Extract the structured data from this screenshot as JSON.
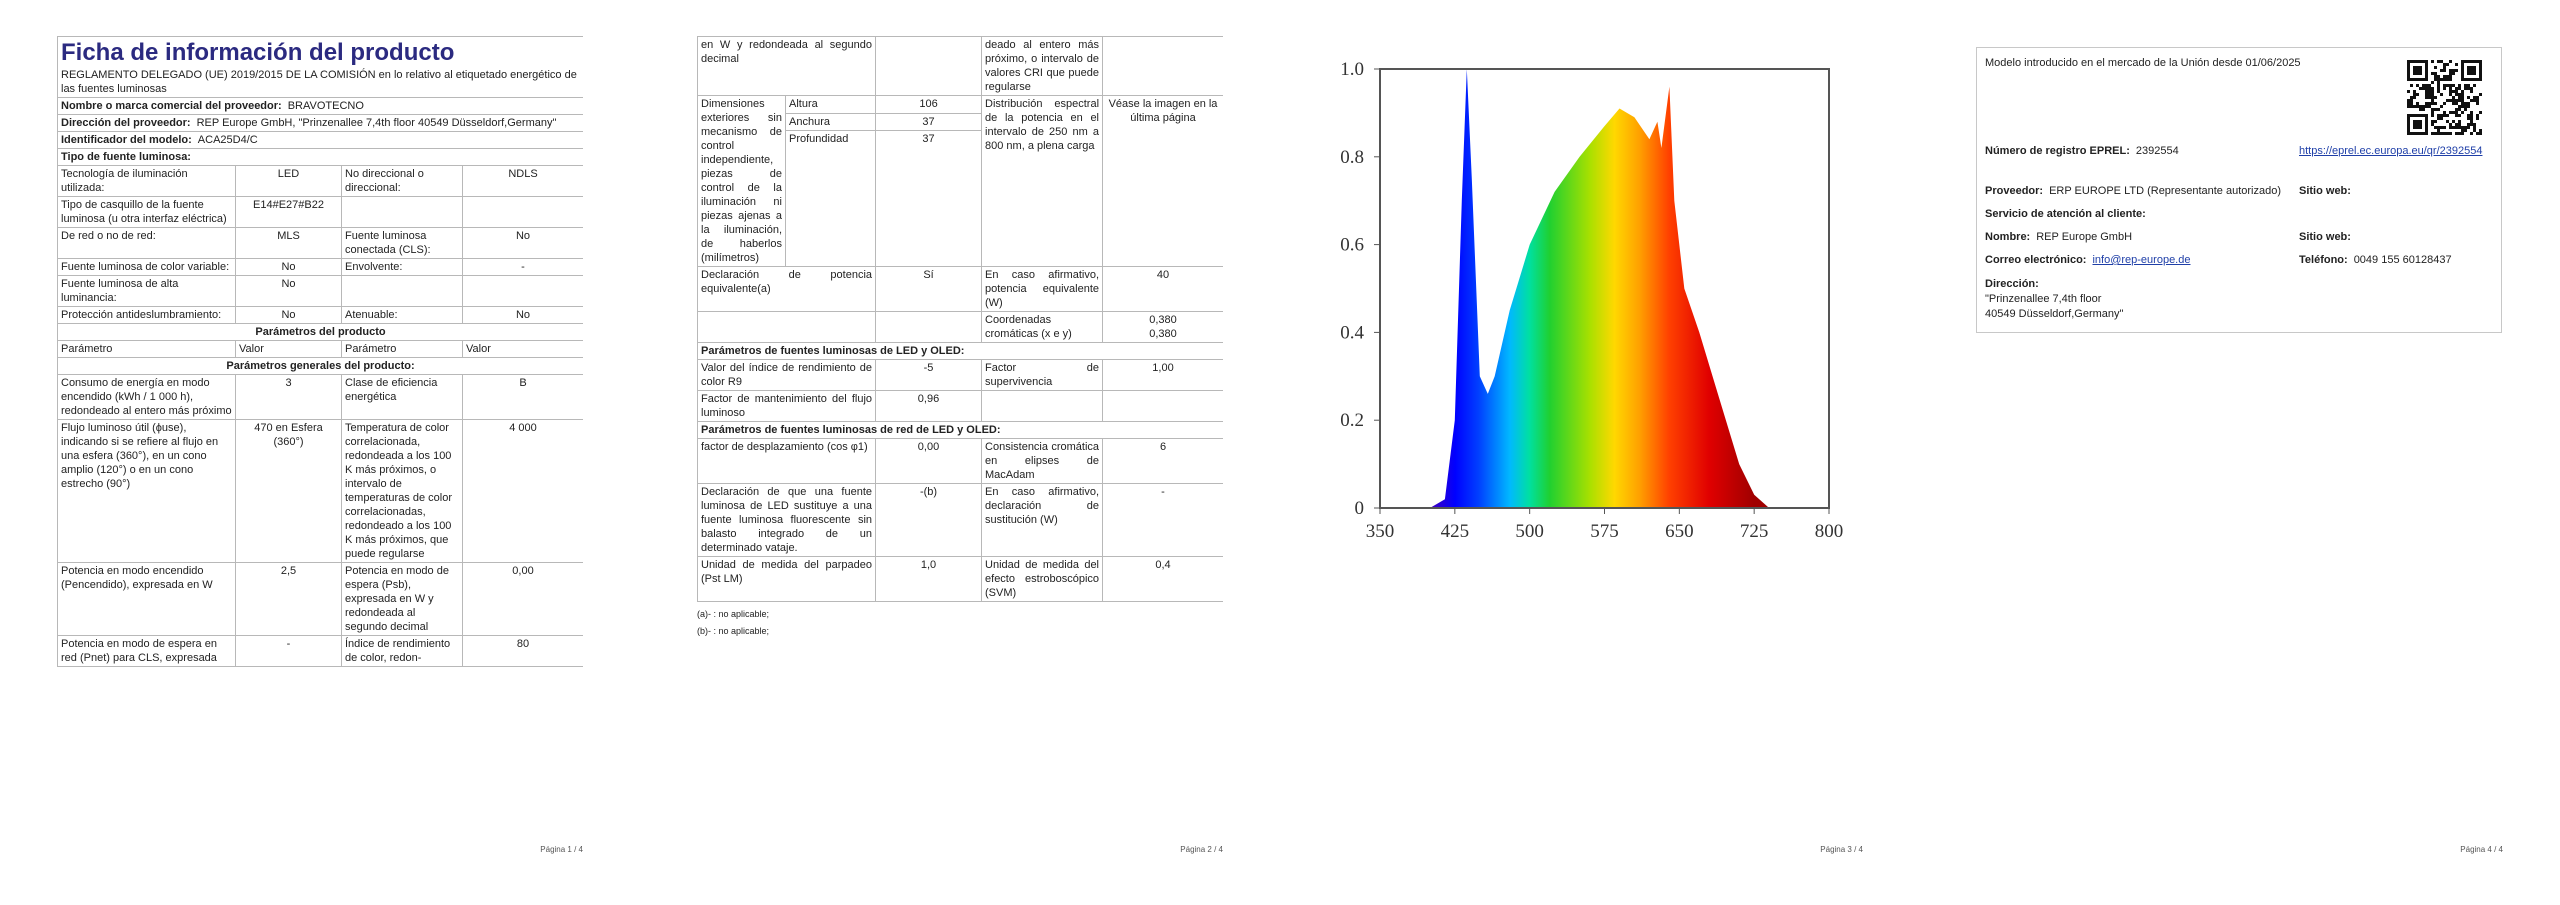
{
  "page1": {
    "title": "Ficha de información del producto",
    "regulation": "REGLAMENTO DELEGADO (UE) 2019/2015 DE LA COMISIÓN en lo relativo al etiquetado energético de las fuentes luminosas",
    "supplier_label": "Nombre o marca comercial del proveedor:",
    "supplier": "BRAVOTECNO",
    "address_label": "Dirección del proveedor:",
    "address": "REP Europe GmbH, \"Prinzenallee 7,4th floor 40549 Düsseldorf,Germany\"",
    "model_label": "Identificador del modelo:",
    "model": "ACA25D4/C",
    "type_heading": "Tipo de fuente luminosa:",
    "type_rows": [
      [
        "Tecnología de iluminación utilizada:",
        "LED",
        "No direccional o direccional:",
        "NDLS"
      ],
      [
        "Tipo de casquillo de la fuente luminosa (u otra interfaz eléctrica)",
        "E14#E27#B22",
        null,
        null
      ],
      [
        "De red o no de red:",
        "MLS",
        "Fuente luminosa conectada (CLS):",
        "No"
      ],
      [
        "Fuente luminosa de color variable:",
        "No",
        "Envolvente:",
        "-"
      ],
      [
        "Fuente luminosa de alta luminancia:",
        "No",
        null,
        null
      ],
      [
        "Protección antideslumbramiento:",
        "No",
        "Atenuable:",
        "No"
      ]
    ],
    "params_heading": "Parámetros del producto",
    "params_header": [
      "Parámetro",
      "Valor",
      "Parámetro",
      "Valor"
    ],
    "general_heading": "Parámetros generales del producto:",
    "general_rows": [
      [
        "Consumo de energía en modo encendido (kWh / 1 000 h), redondeado al entero más próximo",
        "3",
        "Clase de eficiencia energética",
        "B"
      ],
      [
        "Flujo luminoso útil (ϕuse), indicando si se refiere al flujo en una esfera (360°), en un cono amplio (120°) o en un cono estrecho (90°)",
        "470 en Esfera (360°)",
        "Temperatura de color correlacionada, redondeada a los 100 K más próximos, o intervalo de temperaturas de color correlacionadas, redondeado a los 100 K más próximos, que puede regularse",
        "4 000"
      ],
      [
        "Potencia en modo encendido (Pencendido), expresada en W",
        "2,5",
        "Potencia en modo de espera (Psb), expresada en W y redondeada al segundo decimal",
        "0,00"
      ],
      [
        "Potencia en modo de espera en red (Pnet) para CLS, expresada",
        "-",
        "Índice de rendimiento de color, redon-",
        "80"
      ]
    ],
    "footer": "Página 1 / 4"
  },
  "page2": {
    "continued": [
      "en W y redondeada al segundo decimal",
      null,
      "deado al entero más próximo, o intervalo de valores CRI que puede regularse",
      null
    ],
    "dimensions_label": "Dimensiones exteriores sin mecanismo de control independiente, piezas de control de la iluminación ni piezas ajenas a la iluminación, de haberlos (milímetros)",
    "dimensions": [
      [
        "Altura",
        "106"
      ],
      [
        "Anchura",
        "37"
      ],
      [
        "Profundidad",
        "37"
      ]
    ],
    "spectral_label": "Distribución espectral de la potencia en el intervalo de 250 nm a 800 nm, a plena carga",
    "spectral_value": "Véase la imagen en la última página",
    "rows": [
      [
        "Declaración de potencia equivalente(a)",
        "Sí",
        "En caso afirmativo, potencia equivalente (W)",
        "40"
      ],
      [
        null,
        null,
        "Coordenadas cromáticas (x e y)",
        [
          "0,380",
          "0,380"
        ]
      ]
    ],
    "led_heading": "Parámetros de fuentes luminosas de LED y OLED:",
    "led_rows": [
      [
        "Valor del índice de rendimiento de color R9",
        "-5",
        "Factor de supervivencia",
        "1,00"
      ],
      [
        "Factor de mantenimiento del flujo luminoso",
        "0,96",
        null,
        null
      ]
    ],
    "mains_heading": "Parámetros de fuentes luminosas de red de LED y OLED:",
    "mains_rows": [
      [
        "factor de desplazamiento (cos φ1)",
        "0,00",
        "Consistencia cromática en elipses de MacAdam",
        "6"
      ],
      [
        "Declaración de que una fuente luminosa de LED sustituye a una fuente luminosa fluorescente sin balasto integrado de un determinado vataje.",
        "-(b)",
        "En caso afirmativo, declaración de sustitución (W)",
        "-"
      ],
      [
        "Unidad de medida del parpadeo (Pst LM)",
        "1,0",
        "Unidad de medida del efecto estroboscópico (SVM)",
        "0,4"
      ]
    ],
    "notes": [
      "(a)- : no aplicable;",
      "(b)- : no aplicable;"
    ],
    "footer": "Página 2 / 4"
  },
  "page3": {
    "spectrum": {
      "type": "area",
      "x": [
        350,
        400,
        415,
        425,
        432,
        437,
        442,
        450,
        458,
        465,
        480,
        500,
        525,
        550,
        575,
        590,
        605,
        620,
        628,
        632,
        640,
        645,
        655,
        670,
        690,
        710,
        725,
        740,
        800
      ],
      "values": [
        0,
        0,
        0.02,
        0.2,
        0.7,
        1.0,
        0.75,
        0.3,
        0.26,
        0.3,
        0.45,
        0.6,
        0.72,
        0.8,
        0.87,
        0.91,
        0.89,
        0.84,
        0.88,
        0.82,
        0.96,
        0.7,
        0.5,
        0.4,
        0.25,
        0.1,
        0.03,
        0,
        0
      ],
      "xlim": [
        350,
        800
      ],
      "xticks": [
        350,
        425,
        500,
        575,
        650,
        725,
        800
      ],
      "ylim": [
        0,
        1
      ],
      "yticks": [
        0,
        0.2,
        0.4,
        0.6,
        0.8,
        {
          "value": 1,
          "label": "1.0"
        }
      ]
    },
    "footer": "Página 3 / 4"
  },
  "page4": {
    "market_date": "Modelo introducido en el mercado de la Unión desde 01/06/2025",
    "eprel_label": "Número de registro EPREL:",
    "eprel": "2392554",
    "eprel_url": "https://eprel.ec.europa.eu/qr/2392554",
    "supplier_label": "Proveedor:",
    "supplier": "ERP EUROPE LTD (Representante autorizado)",
    "website_label": "Sitio web:",
    "service_heading": "Servicio de atención al cliente:",
    "name_label": "Nombre:",
    "name": "REP Europe GmbH",
    "service_website_label": "Sitio web:",
    "email_label": "Correo electrónico:",
    "email": "info@rep-europe.de",
    "phone_label": "Teléfono:",
    "phone": "0049 155 60128437",
    "address_label": "Dirección:",
    "address": [
      "\"Prinzenallee 7,4th floor",
      "40549 Düsseldorf,Germany\""
    ],
    "footer": "Página 4 / 4"
  }
}
